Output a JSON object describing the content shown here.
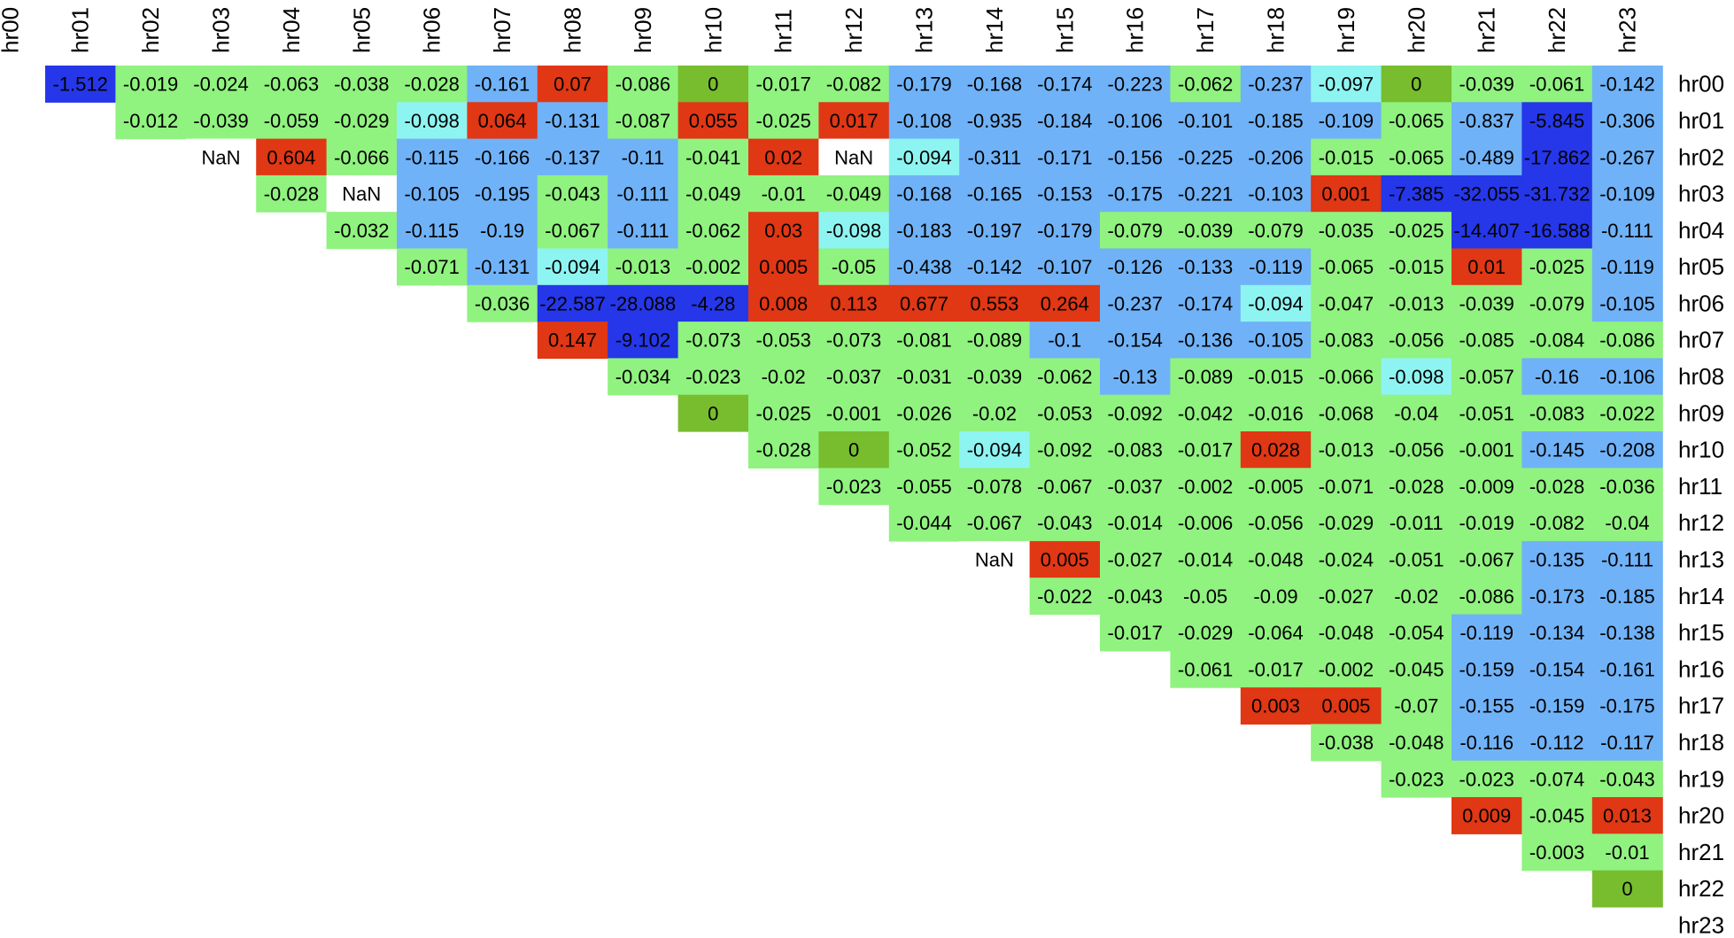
{
  "chart_data": {
    "type": "heatmap",
    "title": "",
    "xlabel": "",
    "ylabel": "",
    "x_categories": [
      "hr00",
      "hr01",
      "hr02",
      "hr03",
      "hr04",
      "hr05",
      "hr06",
      "hr07",
      "hr08",
      "hr09",
      "hr10",
      "hr11",
      "hr12",
      "hr13",
      "hr14",
      "hr15",
      "hr16",
      "hr17",
      "hr18",
      "hr19",
      "hr20",
      "hr21",
      "hr22",
      "hr23"
    ],
    "y_categories": [
      "hr00",
      "hr01",
      "hr02",
      "hr03",
      "hr04",
      "hr05",
      "hr06",
      "hr07",
      "hr08",
      "hr09",
      "hr10",
      "hr11",
      "hr12",
      "hr13",
      "hr14",
      "hr15",
      "hr16",
      "hr17",
      "hr18",
      "hr19",
      "hr20",
      "hr21",
      "hr22",
      "hr23"
    ],
    "layout": "upper-triangle; column labels on top, row labels on right",
    "colors": {
      "dark_blue": "#2537e8",
      "light_blue": "#70b2f7",
      "cyan": "#8ef4f1",
      "green": "#90f27f",
      "olive_green": "#77bd2e",
      "red": "#e03714",
      "white_nan": "#ffffff"
    },
    "rows": [
      {
        "row": "hr00",
        "start": 1,
        "values": [
          "-1.512",
          "-0.019",
          "-0.024",
          "-0.063",
          "-0.038",
          "-0.028",
          "-0.161",
          "0.07",
          "-0.086",
          "0",
          "-0.017",
          "-0.082",
          "-0.179",
          "-0.168",
          "-0.174",
          "-0.223",
          "-0.062",
          "-0.237",
          "-0.097",
          "0",
          "-0.039",
          "-0.061",
          "-0.142"
        ],
        "colors": [
          "dark_blue",
          "green",
          "green",
          "green",
          "green",
          "green",
          "light_blue",
          "red",
          "green",
          "olive_green",
          "green",
          "green",
          "light_blue",
          "light_blue",
          "light_blue",
          "light_blue",
          "green",
          "light_blue",
          "cyan",
          "olive_green",
          "green",
          "green",
          "light_blue"
        ]
      },
      {
        "row": "hr01",
        "start": 2,
        "values": [
          "-0.012",
          "-0.039",
          "-0.059",
          "-0.029",
          "-0.098",
          "0.064",
          "-0.131",
          "-0.087",
          "0.055",
          "-0.025",
          "0.017",
          "-0.108",
          "-0.935",
          "-0.184",
          "-0.106",
          "-0.101",
          "-0.185",
          "-0.109",
          "-0.065",
          "-0.837",
          "-5.845",
          "-0.306"
        ],
        "colors": [
          "green",
          "green",
          "green",
          "green",
          "cyan",
          "red",
          "light_blue",
          "green",
          "red",
          "green",
          "red",
          "light_blue",
          "light_blue",
          "light_blue",
          "light_blue",
          "light_blue",
          "light_blue",
          "light_blue",
          "green",
          "light_blue",
          "dark_blue",
          "light_blue"
        ]
      },
      {
        "row": "hr02",
        "start": 3,
        "values": [
          "NaN",
          "0.604",
          "-0.066",
          "-0.115",
          "-0.166",
          "-0.137",
          "-0.11",
          "-0.041",
          "0.02",
          "NaN",
          "-0.094",
          "-0.311",
          "-0.171",
          "-0.156",
          "-0.225",
          "-0.206",
          "-0.015",
          "-0.065",
          "-0.489",
          "-17.862",
          "-0.267"
        ],
        "colors": [
          "white_nan",
          "red",
          "green",
          "light_blue",
          "light_blue",
          "light_blue",
          "light_blue",
          "green",
          "red",
          "white_nan",
          "cyan",
          "light_blue",
          "light_blue",
          "light_blue",
          "light_blue",
          "light_blue",
          "green",
          "green",
          "light_blue",
          "dark_blue",
          "light_blue"
        ]
      },
      {
        "row": "hr03",
        "start": 4,
        "values": [
          "-0.028",
          "NaN",
          "-0.105",
          "-0.195",
          "-0.043",
          "-0.111",
          "-0.049",
          "-0.01",
          "-0.049",
          "-0.168",
          "-0.165",
          "-0.153",
          "-0.175",
          "-0.221",
          "-0.103",
          "0.001",
          "-7.385",
          "-32.055",
          "-31.732",
          "-0.109"
        ],
        "colors": [
          "green",
          "white_nan",
          "light_blue",
          "light_blue",
          "green",
          "light_blue",
          "green",
          "green",
          "green",
          "light_blue",
          "light_blue",
          "light_blue",
          "light_blue",
          "light_blue",
          "light_blue",
          "red",
          "dark_blue",
          "dark_blue",
          "dark_blue",
          "light_blue"
        ]
      },
      {
        "row": "hr04",
        "start": 5,
        "values": [
          "-0.032",
          "-0.115",
          "-0.19",
          "-0.067",
          "-0.111",
          "-0.062",
          "0.03",
          "-0.098",
          "-0.183",
          "-0.197",
          "-0.179",
          "-0.079",
          "-0.039",
          "-0.079",
          "-0.035",
          "-0.025",
          "-14.407",
          "-16.588",
          "-0.111"
        ],
        "colors": [
          "green",
          "light_blue",
          "light_blue",
          "green",
          "light_blue",
          "green",
          "red",
          "cyan",
          "light_blue",
          "light_blue",
          "light_blue",
          "green",
          "green",
          "green",
          "green",
          "green",
          "dark_blue",
          "dark_blue",
          "light_blue"
        ]
      },
      {
        "row": "hr05",
        "start": 6,
        "values": [
          "-0.071",
          "-0.131",
          "-0.094",
          "-0.013",
          "-0.002",
          "0.005",
          "-0.05",
          "-0.438",
          "-0.142",
          "-0.107",
          "-0.126",
          "-0.133",
          "-0.119",
          "-0.065",
          "-0.015",
          "0.01",
          "-0.025",
          "-0.119"
        ],
        "colors": [
          "green",
          "light_blue",
          "cyan",
          "green",
          "green",
          "red",
          "green",
          "light_blue",
          "light_blue",
          "light_blue",
          "light_blue",
          "light_blue",
          "light_blue",
          "green",
          "green",
          "red",
          "green",
          "light_blue"
        ]
      },
      {
        "row": "hr06",
        "start": 7,
        "values": [
          "-0.036",
          "-22.587",
          "-28.088",
          "-4.28",
          "0.008",
          "0.113",
          "0.677",
          "0.553",
          "0.264",
          "-0.237",
          "-0.174",
          "-0.094",
          "-0.047",
          "-0.013",
          "-0.039",
          "-0.079",
          "-0.105"
        ],
        "colors": [
          "green",
          "dark_blue",
          "dark_blue",
          "dark_blue",
          "red",
          "red",
          "red",
          "red",
          "red",
          "light_blue",
          "light_blue",
          "cyan",
          "green",
          "green",
          "green",
          "green",
          "light_blue"
        ]
      },
      {
        "row": "hr07",
        "start": 8,
        "values": [
          "0.147",
          "-9.102",
          "-0.073",
          "-0.053",
          "-0.073",
          "-0.081",
          "-0.089",
          "-0.1",
          "-0.154",
          "-0.136",
          "-0.105",
          "-0.083",
          "-0.056",
          "-0.085",
          "-0.084",
          "-0.086"
        ],
        "colors": [
          "red",
          "dark_blue",
          "green",
          "green",
          "green",
          "green",
          "green",
          "light_blue",
          "light_blue",
          "light_blue",
          "light_blue",
          "green",
          "green",
          "green",
          "green",
          "green"
        ]
      },
      {
        "row": "hr08",
        "start": 9,
        "values": [
          "-0.034",
          "-0.023",
          "-0.02",
          "-0.037",
          "-0.031",
          "-0.039",
          "-0.062",
          "-0.13",
          "-0.089",
          "-0.015",
          "-0.066",
          "-0.098",
          "-0.057",
          "-0.16",
          "-0.106"
        ],
        "colors": [
          "green",
          "green",
          "green",
          "green",
          "green",
          "green",
          "green",
          "light_blue",
          "green",
          "green",
          "green",
          "cyan",
          "green",
          "light_blue",
          "light_blue"
        ]
      },
      {
        "row": "hr09",
        "start": 10,
        "values": [
          "0",
          "-0.025",
          "-0.001",
          "-0.026",
          "-0.02",
          "-0.053",
          "-0.092",
          "-0.042",
          "-0.016",
          "-0.068",
          "-0.04",
          "-0.051",
          "-0.083",
          "-0.022"
        ],
        "colors": [
          "olive_green",
          "green",
          "green",
          "green",
          "green",
          "green",
          "green",
          "green",
          "green",
          "green",
          "green",
          "green",
          "green",
          "green"
        ]
      },
      {
        "row": "hr10",
        "start": 11,
        "values": [
          "-0.028",
          "0",
          "-0.052",
          "-0.094",
          "-0.092",
          "-0.083",
          "-0.017",
          "0.028",
          "-0.013",
          "-0.056",
          "-0.001",
          "-0.145",
          "-0.208"
        ],
        "colors": [
          "green",
          "olive_green",
          "green",
          "cyan",
          "green",
          "green",
          "green",
          "red",
          "green",
          "green",
          "green",
          "light_blue",
          "light_blue"
        ]
      },
      {
        "row": "hr11",
        "start": 12,
        "values": [
          "-0.023",
          "-0.055",
          "-0.078",
          "-0.067",
          "-0.037",
          "-0.002",
          "-0.005",
          "-0.071",
          "-0.028",
          "-0.009",
          "-0.028",
          "-0.036"
        ],
        "colors": [
          "green",
          "green",
          "green",
          "green",
          "green",
          "green",
          "green",
          "green",
          "green",
          "green",
          "green",
          "green"
        ]
      },
      {
        "row": "hr12",
        "start": 13,
        "values": [
          "-0.044",
          "-0.067",
          "-0.043",
          "-0.014",
          "-0.006",
          "-0.056",
          "-0.029",
          "-0.011",
          "-0.019",
          "-0.082",
          "-0.04"
        ],
        "colors": [
          "green",
          "green",
          "green",
          "green",
          "green",
          "green",
          "green",
          "green",
          "green",
          "green",
          "green"
        ]
      },
      {
        "row": "hr13",
        "start": 14,
        "values": [
          "NaN",
          "0.005",
          "-0.027",
          "-0.014",
          "-0.048",
          "-0.024",
          "-0.051",
          "-0.067",
          "-0.135",
          "-0.111"
        ],
        "colors": [
          "white_nan",
          "red",
          "green",
          "green",
          "green",
          "green",
          "green",
          "green",
          "light_blue",
          "light_blue"
        ]
      },
      {
        "row": "hr14",
        "start": 15,
        "values": [
          "-0.022",
          "-0.043",
          "-0.05",
          "-0.09",
          "-0.027",
          "-0.02",
          "-0.086",
          "-0.173",
          "-0.185"
        ],
        "colors": [
          "green",
          "green",
          "green",
          "green",
          "green",
          "green",
          "green",
          "light_blue",
          "light_blue"
        ]
      },
      {
        "row": "hr15",
        "start": 16,
        "values": [
          "-0.017",
          "-0.029",
          "-0.064",
          "-0.048",
          "-0.054",
          "-0.119",
          "-0.134",
          "-0.138"
        ],
        "colors": [
          "green",
          "green",
          "green",
          "green",
          "green",
          "light_blue",
          "light_blue",
          "light_blue"
        ]
      },
      {
        "row": "hr16",
        "start": 17,
        "values": [
          "-0.061",
          "-0.017",
          "-0.002",
          "-0.045",
          "-0.159",
          "-0.154",
          "-0.161"
        ],
        "colors": [
          "green",
          "green",
          "green",
          "green",
          "light_blue",
          "light_blue",
          "light_blue"
        ]
      },
      {
        "row": "hr17",
        "start": 18,
        "values": [
          "0.003",
          "0.005",
          "-0.07",
          "-0.155",
          "-0.159",
          "-0.175"
        ],
        "colors": [
          "red",
          "red",
          "green",
          "light_blue",
          "light_blue",
          "light_blue"
        ]
      },
      {
        "row": "hr18",
        "start": 19,
        "values": [
          "-0.038",
          "-0.048",
          "-0.116",
          "-0.112",
          "-0.117"
        ],
        "colors": [
          "green",
          "green",
          "light_blue",
          "light_blue",
          "light_blue"
        ]
      },
      {
        "row": "hr19",
        "start": 20,
        "values": [
          "-0.023",
          "-0.023",
          "-0.074",
          "-0.043"
        ],
        "colors": [
          "green",
          "green",
          "green",
          "green"
        ]
      },
      {
        "row": "hr20",
        "start": 21,
        "values": [
          "0.009",
          "-0.045",
          "0.013"
        ],
        "colors": [
          "red",
          "green",
          "red"
        ]
      },
      {
        "row": "hr21",
        "start": 22,
        "values": [
          "-0.003",
          "-0.01"
        ],
        "colors": [
          "green",
          "green"
        ]
      },
      {
        "row": "hr22",
        "start": 23,
        "values": [
          "0"
        ],
        "colors": [
          "olive_green"
        ]
      },
      {
        "row": "hr23",
        "start": 24,
        "values": [],
        "colors": []
      }
    ]
  }
}
